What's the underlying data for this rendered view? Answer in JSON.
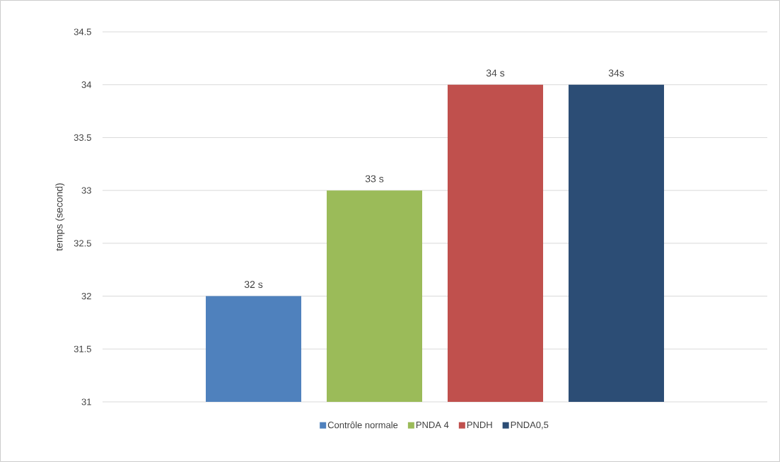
{
  "chart_data": {
    "type": "bar",
    "ylabel": "temps (second)",
    "categories": [
      null
    ],
    "series": [
      {
        "name": "Contrôle normale",
        "color": "#4f81bd",
        "values": [
          32
        ],
        "value_labels": [
          "32 s"
        ]
      },
      {
        "name": "PNDA 4",
        "color": "#9bbb59",
        "values": [
          33
        ],
        "value_labels": [
          "33 s"
        ]
      },
      {
        "name": "PNDH",
        "color": "#c0504d",
        "values": [
          34
        ],
        "value_labels": [
          "34 s"
        ]
      },
      {
        "name": "PNDA0,5",
        "color": "#2c4d75",
        "values": [
          34
        ],
        "value_labels": [
          "34s"
        ]
      }
    ],
    "ylim": [
      31,
      34.5
    ],
    "yticks": [
      31,
      31.5,
      32,
      32.5,
      33,
      33.5,
      34,
      34.5
    ],
    "grid": "y",
    "legend": "bottom"
  }
}
